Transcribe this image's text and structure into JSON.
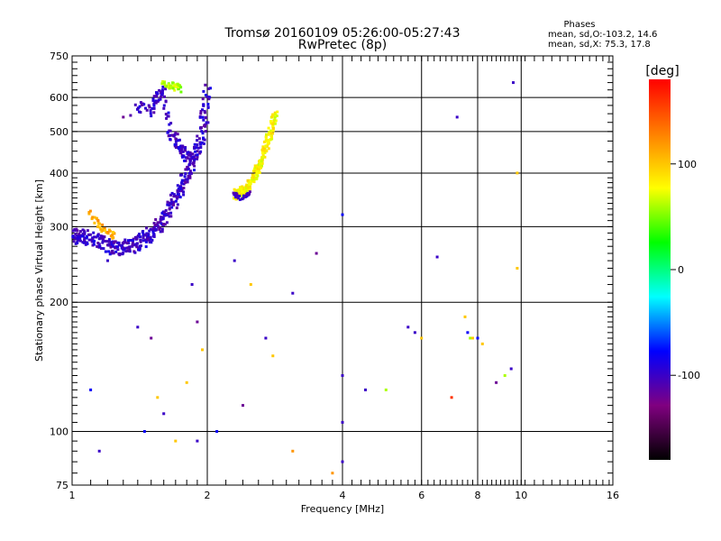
{
  "chart_data": {
    "type": "scatter",
    "title": "Tromsø 20160109 05:26:00-05:27:43",
    "subtitle": "RwPretec (8p)",
    "xlabel": "Frequency [MHz]",
    "ylabel": "Stationary phase Virtual Height [km]",
    "x_scale": "log",
    "y_scale": "log",
    "xlim": [
      1,
      16
    ],
    "ylim": [
      75,
      750
    ],
    "x_ticks": [
      1,
      2,
      4,
      6,
      8,
      10,
      16
    ],
    "x_tick_labels": [
      "1",
      "2",
      "4",
      "6",
      "8",
      "10",
      "16"
    ],
    "x_grid": [
      2,
      4,
      6,
      8,
      10
    ],
    "y_ticks": [
      75,
      100,
      200,
      300,
      400,
      500,
      600,
      750
    ],
    "y_tick_labels": [
      "75",
      "100",
      "200",
      "300",
      "400",
      "500",
      "600",
      "750"
    ],
    "y_grid": [
      100,
      200,
      300,
      400,
      500,
      600
    ],
    "grid": true,
    "stats": {
      "header": "Phases",
      "line_o": "mean, sd,O:-103.2, 14.6",
      "line_x": "mean, sd,X:  75.3, 17.8"
    },
    "colorbar": {
      "label": "[deg]",
      "range": [
        -180,
        180
      ],
      "ticks": [
        100,
        0,
        -100
      ],
      "tick_labels": [
        "100",
        "0",
        "-100"
      ],
      "stops": [
        "#000000",
        "#800080",
        "#0000ff",
        "#00ffff",
        "#00ff00",
        "#ffff00",
        "#ff8000",
        "#ff0000"
      ]
    },
    "traces": [
      {
        "name": "",
        "phase": -100,
        "spread": 0.04,
        "count": 5,
        "points": [
          [
            1.0,
            290
          ],
          [
            1.03,
            282
          ],
          [
            1.06,
            285
          ],
          [
            1.1,
            282
          ],
          [
            1.15,
            278
          ],
          [
            1.2,
            272
          ],
          [
            1.25,
            268
          ],
          [
            1.3,
            268
          ],
          [
            1.35,
            270
          ],
          [
            1.4,
            275
          ],
          [
            1.45,
            282
          ],
          [
            1.5,
            290
          ],
          [
            1.55,
            300
          ],
          [
            1.6,
            310
          ],
          [
            1.65,
            330
          ],
          [
            1.7,
            350
          ],
          [
            1.75,
            370
          ],
          [
            1.8,
            395
          ],
          [
            1.85,
            420
          ],
          [
            1.9,
            450
          ],
          [
            1.95,
            500
          ],
          [
            1.98,
            560
          ],
          [
            2.0,
            640
          ]
        ]
      },
      {
        "name": "",
        "phase": -100,
        "spread": 0.03,
        "count": 4,
        "points": [
          [
            1.4,
            570
          ],
          [
            1.5,
            560
          ],
          [
            1.55,
            600
          ],
          [
            1.6,
            620
          ],
          [
            1.65,
            500
          ],
          [
            1.7,
            480
          ],
          [
            1.75,
            450
          ],
          [
            1.8,
            440
          ],
          [
            1.85,
            430
          ]
        ]
      },
      {
        "name": "",
        "phase": 80,
        "spread": 0.025,
        "count": 5,
        "points": [
          [
            2.3,
            355
          ],
          [
            2.35,
            360
          ],
          [
            2.4,
            365
          ],
          [
            2.45,
            370
          ],
          [
            2.5,
            380
          ],
          [
            2.55,
            395
          ],
          [
            2.6,
            410
          ],
          [
            2.65,
            430
          ],
          [
            2.7,
            460
          ],
          [
            2.75,
            490
          ],
          [
            2.8,
            520
          ],
          [
            2.85,
            550
          ]
        ]
      },
      {
        "name": "",
        "phase": 60,
        "spread": 0.02,
        "count": 3,
        "points": [
          [
            1.6,
            645
          ],
          [
            1.65,
            640
          ],
          [
            1.7,
            635
          ],
          [
            1.75,
            625
          ]
        ]
      },
      {
        "name": "",
        "phase": -100,
        "spread": 0.015,
        "count": 3,
        "points": [
          [
            2.3,
            355
          ],
          [
            2.4,
            350
          ],
          [
            2.5,
            360
          ]
        ]
      },
      {
        "name": "",
        "phase": 110,
        "spread": 0.02,
        "count": 3,
        "points": [
          [
            1.1,
            320
          ],
          [
            1.15,
            300
          ],
          [
            1.2,
            290
          ],
          [
            1.25,
            285
          ]
        ]
      }
    ],
    "scattered": [
      [
        1.1,
        125,
        -80
      ],
      [
        1.15,
        90,
        -100
      ],
      [
        1.2,
        250,
        -100
      ],
      [
        1.3,
        540,
        -120
      ],
      [
        1.35,
        545,
        -110
      ],
      [
        1.4,
        175,
        -100
      ],
      [
        1.45,
        100,
        -80
      ],
      [
        1.5,
        165,
        -120
      ],
      [
        1.55,
        120,
        100
      ],
      [
        1.6,
        110,
        -100
      ],
      [
        1.7,
        95,
        100
      ],
      [
        1.8,
        130,
        100
      ],
      [
        1.85,
        220,
        -100
      ],
      [
        1.9,
        180,
        -120
      ],
      [
        1.9,
        95,
        -100
      ],
      [
        1.95,
        155,
        100
      ],
      [
        2.1,
        100,
        -80
      ],
      [
        2.3,
        250,
        -100
      ],
      [
        2.4,
        115,
        -120
      ],
      [
        2.5,
        220,
        100
      ],
      [
        2.7,
        165,
        -100
      ],
      [
        2.8,
        150,
        100
      ],
      [
        3.1,
        210,
        -100
      ],
      [
        3.1,
        90,
        120
      ],
      [
        3.5,
        260,
        -120
      ],
      [
        3.8,
        80,
        120
      ],
      [
        4.0,
        320,
        -80
      ],
      [
        4.0,
        135,
        -100
      ],
      [
        4.0,
        105,
        -100
      ],
      [
        4.0,
        85,
        -100
      ],
      [
        4.5,
        125,
        -100
      ],
      [
        5.0,
        125,
        60
      ],
      [
        5.6,
        175,
        -100
      ],
      [
        5.8,
        170,
        -100
      ],
      [
        6.0,
        165,
        100
      ],
      [
        6.5,
        255,
        -100
      ],
      [
        7.0,
        120,
        160
      ],
      [
        7.5,
        185,
        100
      ],
      [
        7.6,
        170,
        -80
      ],
      [
        7.7,
        165,
        60
      ],
      [
        7.8,
        165,
        100
      ],
      [
        8.0,
        165,
        -80
      ],
      [
        8.2,
        160,
        100
      ],
      [
        8.8,
        130,
        -120
      ],
      [
        9.2,
        135,
        60
      ],
      [
        9.5,
        140,
        -100
      ],
      [
        9.6,
        650,
        -100
      ],
      [
        9.8,
        400,
        100
      ],
      [
        9.8,
        240,
        100
      ],
      [
        7.2,
        540,
        -100
      ]
    ]
  }
}
